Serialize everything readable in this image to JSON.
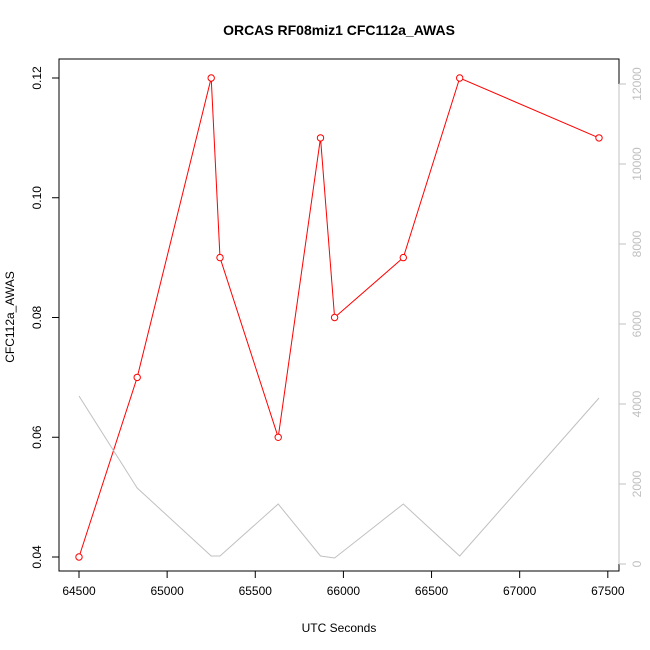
{
  "chart_data": {
    "type": "line",
    "title": "ORCAS RF08miz1 CFC112a_AWAS",
    "xlabel": "UTC Seconds",
    "ylabel": "CFC112a_AWAS",
    "xlim": [
      64500,
      67450
    ],
    "ylim": [
      0.04,
      0.12
    ],
    "y2lim": [
      0,
      12000
    ],
    "x_ticks": [
      64500,
      65000,
      65500,
      66000,
      66500,
      67000,
      67500
    ],
    "x_tick_labels": [
      "64500",
      "65000",
      "65500",
      "66000",
      "66500",
      "67000",
      "67500"
    ],
    "y_ticks": [
      0.04,
      0.06,
      0.08,
      0.1,
      0.12
    ],
    "y_tick_labels": [
      "0.04",
      "0.06",
      "0.08",
      "0.10",
      "0.12"
    ],
    "y2_ticks": [
      0,
      2000,
      4000,
      6000,
      8000,
      10000,
      12000
    ],
    "y2_tick_labels": [
      "0",
      "2000",
      "4000",
      "6000",
      "8000",
      "10000",
      "12000"
    ],
    "grid": false,
    "series": [
      {
        "axis": "left",
        "color": "#ff0000",
        "markers": "open-circle",
        "x": [
          64500,
          64830,
          65250,
          65300,
          65630,
          65870,
          65950,
          66340,
          66660,
          67450
        ],
        "y": [
          0.04,
          0.07,
          0.12,
          0.09,
          0.06,
          0.11,
          0.08,
          0.09,
          0.12,
          0.11
        ]
      },
      {
        "axis": "right",
        "color": "#c0c0c0",
        "markers": "none",
        "x": [
          64500,
          64830,
          65250,
          65300,
          65630,
          65870,
          65950,
          66340,
          66660,
          67450
        ],
        "y": [
          4200,
          1900,
          200,
          200,
          1500,
          200,
          150,
          1500,
          200,
          4150
        ]
      }
    ]
  }
}
